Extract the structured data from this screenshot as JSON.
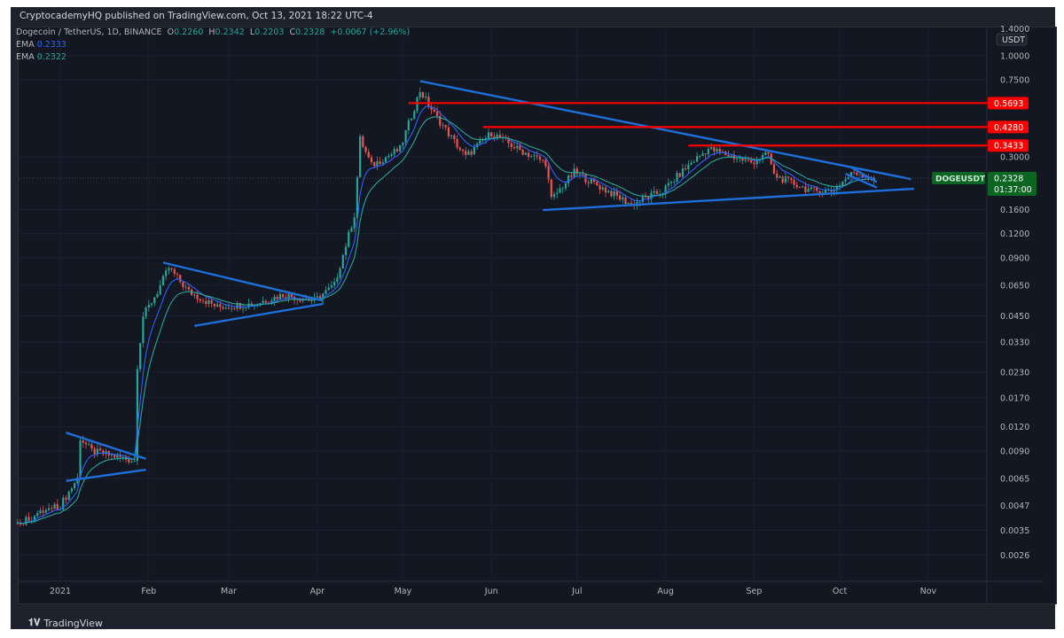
{
  "header": {
    "published": "CryptocademyHQ published on TradingView.com, Oct 13, 2021 18:22 UTC-4"
  },
  "legend": {
    "symbol": "Dogecoin / TetherUS, 1D, BINANCE",
    "o_label": "O",
    "o": "0.2260",
    "h_label": "H",
    "h": "0.2342",
    "l_label": "L",
    "l": "0.2203",
    "c_label": "C",
    "c": "0.2328",
    "change": "+0.0067 (+2.96%)",
    "ema1_label": "EMA",
    "ema1": "0.2333",
    "ema2_label": "EMA",
    "ema2": "0.2322"
  },
  "footer": {
    "brand": "TradingView"
  },
  "colors": {
    "up": "#26a69a",
    "down": "#ef5350",
    "trendline": "#1e6fd9",
    "level": "#ff0000",
    "ema1": "#2962ff",
    "ema2": "#26a69a",
    "price_tag": "#0b6623"
  },
  "chart_data": {
    "type": "candlestick",
    "scale": "log",
    "ylim": [
      0.0022,
      1.45
    ],
    "currency": "USDT",
    "y_ticks": [
      "1.4000",
      "1.0000",
      "0.7500",
      "0.3000",
      "0.1600",
      "0.1200",
      "0.0900",
      "0.0650",
      "0.0450",
      "0.0330",
      "0.0230",
      "0.0170",
      "0.0120",
      "0.0090",
      "0.0065",
      "0.0047",
      "0.0035",
      "0.0026"
    ],
    "x_ticks": [
      {
        "label": "2021",
        "date": "2021-01-01"
      },
      {
        "label": "Feb",
        "date": "2021-02-01"
      },
      {
        "label": "Mar",
        "date": "2021-03-01"
      },
      {
        "label": "Apr",
        "date": "2021-04-01"
      },
      {
        "label": "May",
        "date": "2021-05-01"
      },
      {
        "label": "Jun",
        "date": "2021-06-01"
      },
      {
        "label": "Jul",
        "date": "2021-07-01"
      },
      {
        "label": "Aug",
        "date": "2021-08-01"
      },
      {
        "label": "Sep",
        "date": "2021-09-01"
      },
      {
        "label": "Oct",
        "date": "2021-10-01"
      },
      {
        "label": "Nov",
        "date": "2021-11-01"
      }
    ],
    "approx_close_path": [
      [
        "2020-12-17",
        0.0038
      ],
      [
        "2020-12-28",
        0.0045
      ],
      [
        "2021-01-01",
        0.0047
      ],
      [
        "2021-01-07",
        0.0065
      ],
      [
        "2021-01-08",
        0.0105
      ],
      [
        "2021-01-12",
        0.009
      ],
      [
        "2021-01-27",
        0.008
      ],
      [
        "2021-01-28",
        0.025
      ],
      [
        "2021-01-30",
        0.045
      ],
      [
        "2021-02-04",
        0.06
      ],
      [
        "2021-02-08",
        0.08
      ],
      [
        "2021-02-15",
        0.06
      ],
      [
        "2021-02-25",
        0.05
      ],
      [
        "2021-03-10",
        0.052
      ],
      [
        "2021-03-20",
        0.058
      ],
      [
        "2021-03-31",
        0.054
      ],
      [
        "2021-04-07",
        0.065
      ],
      [
        "2021-04-14",
        0.15
      ],
      [
        "2021-04-16",
        0.37
      ],
      [
        "2021-04-20",
        0.27
      ],
      [
        "2021-04-30",
        0.33
      ],
      [
        "2021-05-07",
        0.66
      ],
      [
        "2021-05-12",
        0.5
      ],
      [
        "2021-05-19",
        0.36
      ],
      [
        "2021-05-23",
        0.3
      ],
      [
        "2021-06-01",
        0.4
      ],
      [
        "2021-06-10",
        0.33
      ],
      [
        "2021-06-20",
        0.28
      ],
      [
        "2021-06-22",
        0.18
      ],
      [
        "2021-06-30",
        0.25
      ],
      [
        "2021-07-20",
        0.17
      ],
      [
        "2021-07-31",
        0.2
      ],
      [
        "2021-08-10",
        0.28
      ],
      [
        "2021-08-16",
        0.33
      ],
      [
        "2021-08-31",
        0.28
      ],
      [
        "2021-09-06",
        0.31
      ],
      [
        "2021-09-08",
        0.24
      ],
      [
        "2021-09-21",
        0.2
      ],
      [
        "2021-09-28",
        0.2
      ],
      [
        "2021-10-06",
        0.25
      ],
      [
        "2021-10-13",
        0.2328
      ]
    ],
    "trendlines": [
      {
        "from": [
          "2021-01-03",
          0.0112
        ],
        "to": [
          "2021-01-31",
          0.0082
        ]
      },
      {
        "from": [
          "2021-01-03",
          0.0063
        ],
        "to": [
          "2021-01-31",
          0.0072
        ]
      },
      {
        "from": [
          "2021-02-06",
          0.085
        ],
        "to": [
          "2021-04-03",
          0.054
        ]
      },
      {
        "from": [
          "2021-02-17",
          0.04
        ],
        "to": [
          "2021-04-03",
          0.052
        ]
      },
      {
        "from": [
          "2021-05-07",
          0.74
        ],
        "to": [
          "2021-10-26",
          0.23
        ]
      },
      {
        "from": [
          "2021-06-19",
          0.159
        ],
        "to": [
          "2021-10-27",
          0.205
        ]
      },
      {
        "from": [
          "2021-10-05",
          0.265
        ],
        "to": [
          "2021-10-14",
          0.222
        ]
      },
      {
        "from": [
          "2021-10-03",
          0.245
        ],
        "to": [
          "2021-10-14",
          0.208
        ]
      }
    ],
    "horizontal_levels": [
      {
        "price": 0.5693,
        "label": "0.5693",
        "from": "2021-05-03"
      },
      {
        "price": 0.428,
        "label": "0.4280",
        "from": "2021-05-29"
      },
      {
        "price": 0.3433,
        "label": "0.3433",
        "from": "2021-08-09"
      }
    ],
    "last_price": {
      "symbol": "DOGEUSDT",
      "price": 0.2328,
      "label": "0.2328",
      "countdown": "01:37:00"
    }
  }
}
